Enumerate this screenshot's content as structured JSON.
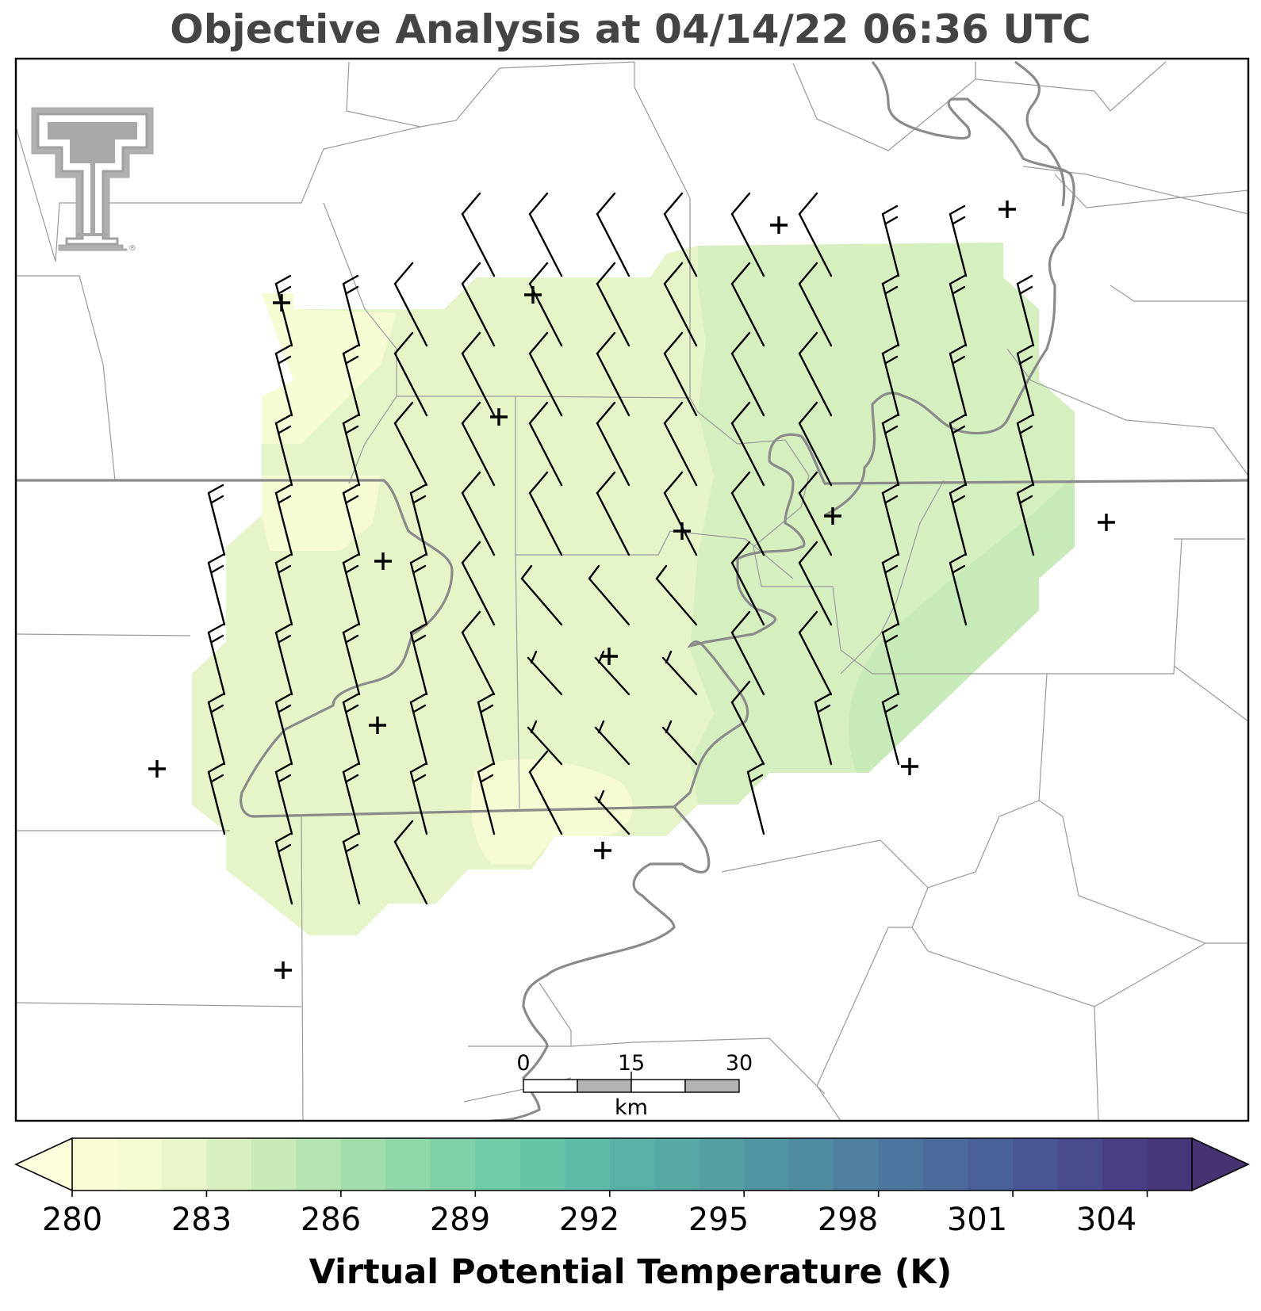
{
  "title": "Objective Analysis at 04/14/22 06:36 UTC",
  "logo": {
    "name": "double-t-logo",
    "registered_mark": "®"
  },
  "scale_bar": {
    "ticks": [
      "0",
      "15",
      "30"
    ],
    "unit": "km"
  },
  "colorbar": {
    "label": "Virtual Potential Temperature (K)",
    "ticks": [
      "280",
      "283",
      "286",
      "289",
      "292",
      "295",
      "298",
      "301",
      "304"
    ],
    "min": 280,
    "max": 305,
    "step": 1,
    "extend": "both",
    "colors": [
      "#fbfcd6",
      "#f5fbd2",
      "#e8f6c9",
      "#d8f0c0",
      "#c8eab9",
      "#b5e4b3",
      "#a2ddad",
      "#90d7aa",
      "#80d1a8",
      "#72cba8",
      "#67c4a7",
      "#5fbba6",
      "#5ab2a6",
      "#56a9a5",
      "#539fa4",
      "#5195a2",
      "#4f8ba1",
      "#4d819f",
      "#4c769e",
      "#4b6b9c",
      "#4a6099",
      "#4a5596",
      "#4a4a8f",
      "#493f85",
      "#47377a"
    ],
    "under_color": "#fdfedb",
    "over_color": "#453471"
  },
  "field_colors": {
    "light": "#f6fbd3",
    "mid": "#e6f5c8",
    "dark": "#d5efbf",
    "darker": "#c8eab9"
  },
  "observations": {
    "station_marker": "plus",
    "wind_glyph": "wind-barb"
  }
}
